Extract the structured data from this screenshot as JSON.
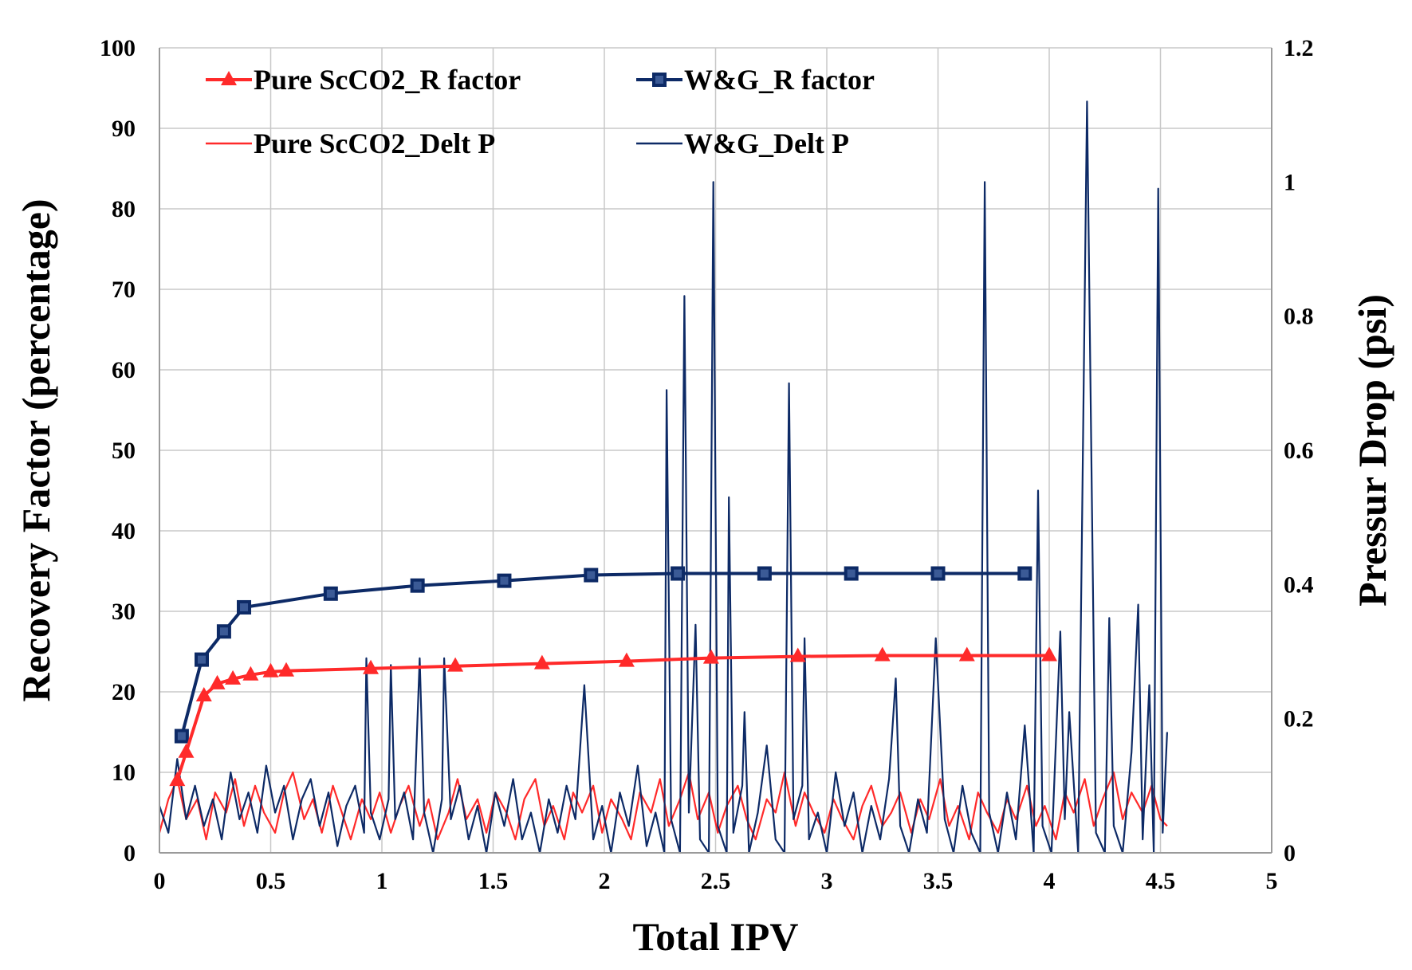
{
  "chart_data": {
    "type": "line",
    "xlabel": "Total IPV",
    "ylabel": "Recovery Factor (percentage)",
    "y2label": "Pressur Drop (psi)",
    "xlim": [
      0,
      5
    ],
    "ylim": [
      0,
      100
    ],
    "y2lim": [
      0,
      1.2
    ],
    "x_ticks": [
      "0",
      "0.5",
      "1",
      "1.5",
      "2",
      "2.5",
      "3",
      "3.5",
      "4",
      "4.5",
      "5"
    ],
    "y_ticks": [
      "0",
      "10",
      "20",
      "30",
      "40",
      "50",
      "60",
      "70",
      "80",
      "90",
      "100"
    ],
    "y2_ticks": [
      "0",
      "0.2",
      "0.4",
      "0.6",
      "0.8",
      "1",
      "1.2"
    ],
    "grid": true,
    "legend_position": "top-left",
    "colors": {
      "red": "#ff2a2a",
      "blue": "#0d2a66",
      "grid": "#c8c8c8"
    },
    "series": [
      {
        "name": "Pure ScCO2_R factor",
        "axis": "left",
        "marker": "triangle",
        "color": "#ff2a2a",
        "x": [
          0.08,
          0.12,
          0.2,
          0.26,
          0.33,
          0.41,
          0.5,
          0.57,
          0.95,
          1.33,
          1.72,
          2.1,
          2.48,
          2.87,
          3.25,
          3.63,
          4.0
        ],
        "y": [
          9,
          12.5,
          19.5,
          21,
          21.6,
          22.1,
          22.5,
          22.6,
          22.9,
          23.2,
          23.5,
          23.8,
          24.2,
          24.4,
          24.5,
          24.5,
          24.5
        ]
      },
      {
        "name": "W&G_R factor",
        "axis": "left",
        "marker": "square",
        "color": "#0d2a66",
        "x": [
          0.1,
          0.19,
          0.29,
          0.38,
          0.77,
          1.16,
          1.55,
          1.94,
          2.33,
          2.72,
          3.11,
          3.5,
          3.89
        ],
        "y": [
          14.5,
          24,
          27.5,
          30.5,
          32.2,
          33.2,
          33.8,
          34.5,
          34.7,
          34.7,
          34.7,
          34.7,
          34.7
        ]
      },
      {
        "name": "Pure ScCO2_Delt P",
        "axis": "right",
        "marker": "none",
        "color": "#ff2a2a",
        "x": [
          0.0,
          0.04,
          0.08,
          0.12,
          0.17,
          0.21,
          0.25,
          0.3,
          0.34,
          0.38,
          0.43,
          0.47,
          0.52,
          0.56,
          0.6,
          0.65,
          0.69,
          0.73,
          0.78,
          0.82,
          0.86,
          0.91,
          0.95,
          0.99,
          1.04,
          1.08,
          1.12,
          1.17,
          1.21,
          1.25,
          1.3,
          1.34,
          1.38,
          1.43,
          1.47,
          1.51,
          1.56,
          1.6,
          1.64,
          1.69,
          1.73,
          1.77,
          1.82,
          1.86,
          1.9,
          1.95,
          1.99,
          2.03,
          2.08,
          2.12,
          2.16,
          2.21,
          2.25,
          2.29,
          2.34,
          2.38,
          2.42,
          2.47,
          2.51,
          2.55,
          2.6,
          2.64,
          2.68,
          2.73,
          2.77,
          2.81,
          2.86,
          2.9,
          2.94,
          2.99,
          3.03,
          3.07,
          3.12,
          3.16,
          3.2,
          3.25,
          3.29,
          3.33,
          3.38,
          3.42,
          3.46,
          3.51,
          3.55,
          3.59,
          3.64,
          3.68,
          3.72,
          3.77,
          3.81,
          3.85,
          3.9,
          3.94,
          3.98,
          4.03,
          4.07,
          4.11,
          4.16,
          4.2,
          4.24,
          4.29,
          4.33,
          4.37,
          4.42,
          4.46,
          4.5,
          4.53
        ],
        "y": [
          0.03,
          0.08,
          0.11,
          0.05,
          0.08,
          0.02,
          0.09,
          0.06,
          0.11,
          0.04,
          0.1,
          0.06,
          0.03,
          0.09,
          0.12,
          0.05,
          0.08,
          0.03,
          0.1,
          0.06,
          0.02,
          0.08,
          0.05,
          0.09,
          0.03,
          0.07,
          0.1,
          0.04,
          0.08,
          0.02,
          0.06,
          0.11,
          0.05,
          0.08,
          0.03,
          0.09,
          0.06,
          0.02,
          0.08,
          0.11,
          0.04,
          0.07,
          0.02,
          0.09,
          0.06,
          0.1,
          0.03,
          0.08,
          0.05,
          0.02,
          0.09,
          0.06,
          0.11,
          0.04,
          0.08,
          0.12,
          0.05,
          0.09,
          0.03,
          0.07,
          0.1,
          0.05,
          0.02,
          0.08,
          0.06,
          0.12,
          0.04,
          0.09,
          0.06,
          0.03,
          0.08,
          0.05,
          0.02,
          0.07,
          0.1,
          0.04,
          0.06,
          0.09,
          0.03,
          0.08,
          0.05,
          0.11,
          0.04,
          0.07,
          0.02,
          0.09,
          0.06,
          0.03,
          0.08,
          0.05,
          0.1,
          0.04,
          0.07,
          0.02,
          0.09,
          0.06,
          0.11,
          0.04,
          0.08,
          0.12,
          0.05,
          0.09,
          0.06,
          0.1,
          0.05,
          0.04
        ]
      },
      {
        "name": "W&G_Delt P",
        "axis": "right",
        "marker": "none",
        "color": "#0d2a66",
        "x": [
          0.0,
          0.04,
          0.08,
          0.12,
          0.16,
          0.2,
          0.24,
          0.28,
          0.32,
          0.36,
          0.4,
          0.44,
          0.48,
          0.52,
          0.56,
          0.6,
          0.64,
          0.68,
          0.72,
          0.76,
          0.8,
          0.84,
          0.88,
          0.92,
          0.93,
          0.95,
          0.99,
          1.03,
          1.04,
          1.06,
          1.1,
          1.14,
          1.17,
          1.19,
          1.23,
          1.27,
          1.28,
          1.31,
          1.35,
          1.39,
          1.43,
          1.47,
          1.51,
          1.55,
          1.59,
          1.63,
          1.67,
          1.71,
          1.75,
          1.79,
          1.83,
          1.87,
          1.91,
          1.95,
          1.99,
          2.03,
          2.07,
          2.11,
          2.15,
          2.19,
          2.23,
          2.27,
          2.28,
          2.3,
          2.34,
          2.36,
          2.38,
          2.41,
          2.43,
          2.47,
          2.49,
          2.51,
          2.55,
          2.56,
          2.58,
          2.62,
          2.63,
          2.65,
          2.69,
          2.73,
          2.77,
          2.81,
          2.83,
          2.85,
          2.89,
          2.9,
          2.92,
          2.96,
          3.0,
          3.04,
          3.08,
          3.12,
          3.16,
          3.2,
          3.24,
          3.28,
          3.31,
          3.33,
          3.37,
          3.41,
          3.45,
          3.49,
          3.53,
          3.57,
          3.61,
          3.65,
          3.69,
          3.71,
          3.73,
          3.77,
          3.81,
          3.85,
          3.89,
          3.93,
          3.95,
          3.97,
          4.01,
          4.05,
          4.07,
          4.09,
          4.13,
          4.17,
          4.21,
          4.25,
          4.27,
          4.29,
          4.33,
          4.37,
          4.4,
          4.42,
          4.45,
          4.47,
          4.49,
          4.51,
          4.53
        ],
        "y": [
          0.07,
          0.03,
          0.14,
          0.05,
          0.1,
          0.04,
          0.08,
          0.02,
          0.12,
          0.05,
          0.09,
          0.03,
          0.13,
          0.06,
          0.1,
          0.02,
          0.08,
          0.11,
          0.04,
          0.09,
          0.01,
          0.07,
          0.1,
          0.03,
          0.29,
          0.06,
          0.02,
          0.08,
          0.28,
          0.05,
          0.09,
          0.02,
          0.29,
          0.06,
          0.0,
          0.08,
          0.29,
          0.05,
          0.1,
          0.02,
          0.07,
          0.0,
          0.09,
          0.04,
          0.11,
          0.02,
          0.06,
          0.0,
          0.08,
          0.03,
          0.1,
          0.05,
          0.25,
          0.02,
          0.07,
          0.0,
          0.09,
          0.04,
          0.13,
          0.01,
          0.06,
          0.0,
          0.69,
          0.05,
          0.0,
          0.83,
          0.06,
          0.34,
          0.02,
          0.0,
          1.0,
          0.04,
          0.0,
          0.53,
          0.03,
          0.1,
          0.21,
          0.0,
          0.06,
          0.16,
          0.02,
          0.0,
          0.7,
          0.05,
          0.1,
          0.32,
          0.02,
          0.06,
          0.0,
          0.12,
          0.04,
          0.09,
          0.0,
          0.07,
          0.02,
          0.11,
          0.26,
          0.04,
          0.0,
          0.08,
          0.03,
          0.32,
          0.05,
          0.0,
          0.1,
          0.03,
          0.0,
          1.0,
          0.06,
          0.0,
          0.09,
          0.02,
          0.19,
          0.0,
          0.54,
          0.04,
          0.0,
          0.33,
          0.05,
          0.21,
          0.0,
          1.12,
          0.03,
          0.0,
          0.35,
          0.04,
          0.0,
          0.15,
          0.37,
          0.02,
          0.25,
          0.0,
          0.99,
          0.03,
          0.18
        ]
      }
    ]
  }
}
